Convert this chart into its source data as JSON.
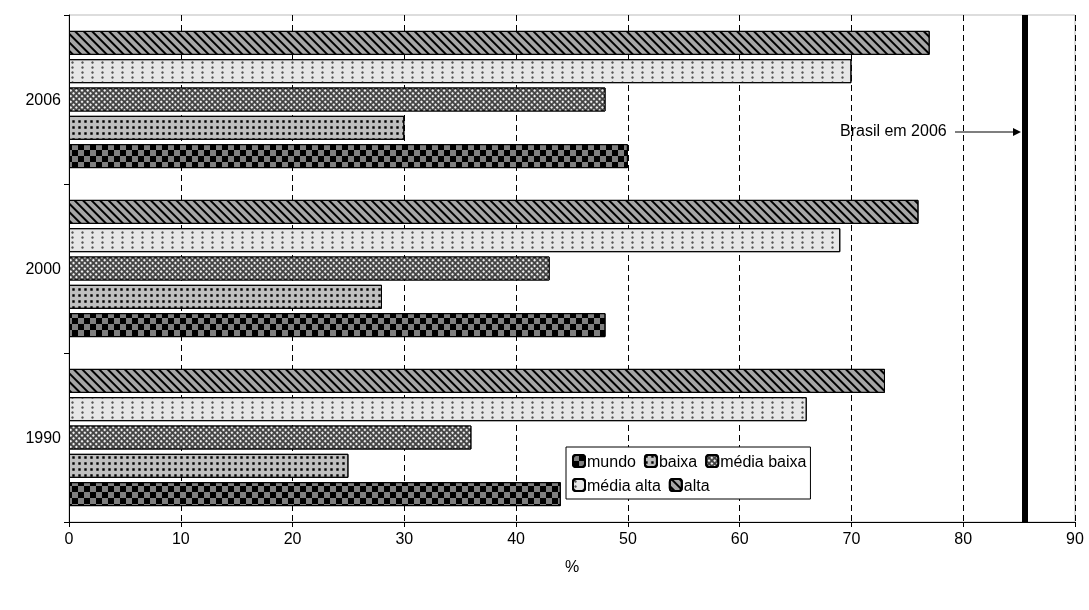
{
  "chart_data": {
    "type": "bar",
    "orientation": "horizontal",
    "xlabel": "%",
    "categories": [
      "2006",
      "2000",
      "1990"
    ],
    "series": [
      {
        "name": "mundo",
        "color": "#7f7f7f",
        "values": [
          50,
          48,
          44
        ]
      },
      {
        "name": "baixa",
        "color": "#bfbfbf",
        "values": [
          30,
          28,
          25
        ]
      },
      {
        "name": "média baixa",
        "color": "#404040",
        "values": [
          48,
          43,
          36
        ]
      },
      {
        "name": "média alta",
        "color": "#e6e6e6",
        "values": [
          70,
          69,
          66
        ]
      },
      {
        "name": "alta",
        "color": "#a6a6a6",
        "values": [
          77,
          76,
          73
        ]
      }
    ],
    "xlim": [
      0,
      90
    ],
    "xticks": [
      0,
      10,
      20,
      30,
      40,
      50,
      60,
      70,
      80,
      90
    ],
    "grid": "x",
    "legend": "bottom right",
    "ref_lines": [
      {
        "axis": "x",
        "value": 85.5,
        "color": "#000000"
      }
    ],
    "annotations": [
      "Brasil em 2006"
    ]
  }
}
